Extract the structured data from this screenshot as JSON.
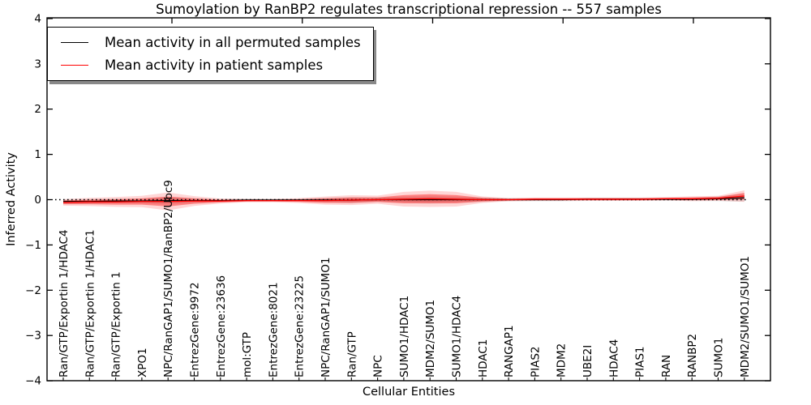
{
  "chart_data": {
    "type": "line",
    "title": "Sumoylation by RanBP2 regulates transcriptional repression -- 557 samples",
    "xlabel": "Cellular Entities",
    "ylabel": "Inferred Activity",
    "ylim": [
      -4,
      4
    ],
    "ytick_values": [
      4,
      3,
      2,
      1,
      0,
      -1,
      -2,
      -3,
      -4
    ],
    "ytick_labels": [
      "4",
      "3",
      "2",
      "1",
      "0",
      "−1",
      "−2",
      "−3",
      "−4"
    ],
    "grid": false,
    "legend_position": "upper left",
    "zero_reference_line": 0,
    "categories": [
      "Ran/GTP/Exportin 1/HDAC4",
      "Ran/GTP/Exportin 1/HDAC1",
      "Ran/GTP/Exportin 1",
      "XPO1",
      "NPC/RanGAP1/SUMO1/RanBP2/Ubc9",
      "EntrezGene:9972",
      "EntrezGene:23636",
      "mol:GTP",
      "EntrezGene:8021",
      "EntrezGene:23225",
      "NPC/RanGAP1/SUMO1",
      "Ran/GTP",
      "NPC",
      "SUMO1/HDAC1",
      "MDM2/SUMO1",
      "SUMO1/HDAC4",
      "HDAC1",
      "RANGAP1",
      "PIAS2",
      "MDM2",
      "UBE2I",
      "HDAC4",
      "PIAS1",
      "RAN",
      "RANBP2",
      "SUMO1",
      "MDM2/SUMO1/SUMO1"
    ],
    "series": [
      {
        "name": "Mean activity in all permuted samples",
        "color": "#000000",
        "band_color": "#3c3c3c",
        "values": [
          -0.04,
          -0.04,
          -0.03,
          -0.03,
          -0.02,
          -0.02,
          -0.02,
          -0.01,
          -0.01,
          -0.01,
          -0.01,
          -0.01,
          0,
          0,
          0,
          0,
          0,
          0,
          0,
          0,
          0.01,
          0.01,
          0.01,
          0.01,
          0.01,
          0.02,
          0.04
        ],
        "band_halfwidth": [
          0.03,
          0.03,
          0.03,
          0.03,
          0.05,
          0.03,
          0.02,
          0.02,
          0.02,
          0.02,
          0.03,
          0.04,
          0.03,
          0.04,
          0.05,
          0.04,
          0.03,
          0.02,
          0.02,
          0.02,
          0.02,
          0.02,
          0.02,
          0.02,
          0.02,
          0.03,
          0.05
        ]
      },
      {
        "name": "Mean activity in patient samples",
        "color": "#ff0000",
        "band_color": "#ff0000",
        "values": [
          -0.06,
          -0.05,
          -0.05,
          -0.04,
          -0.04,
          -0.03,
          -0.03,
          -0.02,
          -0.02,
          -0.02,
          -0.02,
          -0.01,
          0,
          0.01,
          0.02,
          0.01,
          0,
          0,
          0.01,
          0.01,
          0.01,
          0.01,
          0.01,
          0.02,
          0.02,
          0.03,
          0.08
        ],
        "band_halfwidth": [
          0.04,
          0.05,
          0.06,
          0.07,
          0.11,
          0.06,
          0.03,
          0.02,
          0.02,
          0.03,
          0.05,
          0.06,
          0.05,
          0.09,
          0.1,
          0.09,
          0.04,
          0.02,
          0.02,
          0.02,
          0.02,
          0.02,
          0.02,
          0.02,
          0.03,
          0.03,
          0.07
        ]
      }
    ]
  },
  "legend": {
    "items": [
      {
        "label": "Mean activity in all permuted samples",
        "color": "#000000"
      },
      {
        "label": "Mean activity in patient samples",
        "color": "#ff0000"
      }
    ]
  }
}
